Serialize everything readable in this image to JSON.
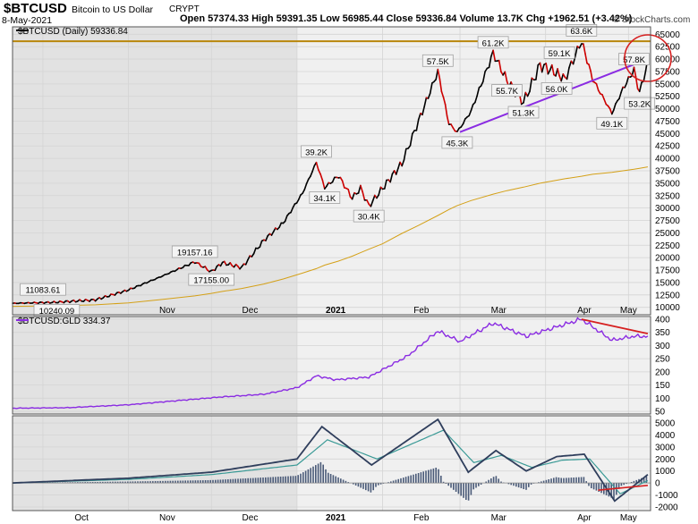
{
  "header": {
    "symbol": "$BTCUSD",
    "name": "Bitcoin to US Dollar",
    "exchange": "CRYPT",
    "date": "8-May-2021",
    "ohlc_text": "Open 57374.33   High 59391.35   Low 56985.44   Close 59336.84   Volume 13.7K   Chg +1962.51 (+3.42%)",
    "watermark": "© StockCharts.com"
  },
  "colors": {
    "up": "#000000",
    "down": "#cc0000",
    "ma": "#d4a017",
    "support": "#8a2be2",
    "resistance": "#b8860b",
    "ratio": "#8a2be2",
    "macd": "#2f3e5c",
    "signal": "#3a9a96",
    "annotation": "#d62020",
    "shade": "#e2e2e2",
    "panel": "#f0f0f0"
  },
  "chart_data": [
    {
      "type": "line",
      "title": "$BTCUSD (Daily) 59336.84",
      "x": [
        "2020-09-20",
        "2020-10-05",
        "2020-10-20",
        "2020-11-01",
        "2020-11-12",
        "2020-11-25",
        "2020-12-01",
        "2020-12-05",
        "2020-12-12",
        "2020-12-20",
        "2020-12-27",
        "2021-01-03",
        "2021-01-08",
        "2021-01-11",
        "2021-01-16",
        "2021-01-21",
        "2021-01-24",
        "2021-01-27",
        "2021-02-01",
        "2021-02-08",
        "2021-02-14",
        "2021-02-21",
        "2021-02-25",
        "2021-02-28",
        "2021-03-05",
        "2021-03-13",
        "2021-03-18",
        "2021-03-24",
        "2021-03-30",
        "2021-04-04",
        "2021-04-08",
        "2021-04-14",
        "2021-04-18",
        "2021-04-25",
        "2021-04-29",
        "2021-05-03",
        "2021-05-05",
        "2021-05-08"
      ],
      "y": [
        10800,
        11000,
        11500,
        13500,
        16000,
        19157,
        17155,
        19000,
        18000,
        23500,
        27000,
        33000,
        39200,
        34100,
        36500,
        32000,
        34000,
        30400,
        34000,
        39000,
        47500,
        57500,
        47000,
        45300,
        49500,
        61200,
        55700,
        51300,
        58800,
        57500,
        56000,
        63600,
        56000,
        49100,
        54000,
        57800,
        53200,
        59336
      ],
      "annotations": [
        "11083.61",
        "10240.09",
        "19157.16",
        "17155.00",
        "39.2K",
        "34.1K",
        "30.4K",
        "57.5K",
        "45.3K",
        "61.2K",
        "55.7K",
        "51.3K",
        "59.1K",
        "56.0K",
        "63.6K",
        "49.1K",
        "57.8K",
        "53.2K"
      ],
      "ma_y": [
        10200,
        10300,
        10500,
        10900,
        11500,
        12300,
        12800,
        13200,
        13800,
        14700,
        15700,
        16900,
        17800,
        18500,
        19300,
        20300,
        21000,
        21700,
        22800,
        24900,
        26500,
        28500,
        29700,
        30500,
        31500,
        32800,
        33500,
        34200,
        35000,
        35500,
        35900,
        36400,
        36800,
        37200,
        37500,
        37800,
        38000,
        38300
      ],
      "resistance": 63600,
      "support_from": [
        "2021-03-01",
        45300
      ],
      "support_to": [
        "2021-05-08",
        60000
      ],
      "ylim": [
        8500,
        66500
      ],
      "yticks": [
        "65000",
        "62500",
        "60000",
        "57500",
        "55000",
        "52500",
        "50000",
        "47500",
        "45000",
        "42500",
        "40000",
        "37500",
        "35000",
        "32500",
        "30000",
        "27500",
        "25000",
        "22500",
        "20000",
        "17500",
        "15000",
        "12500",
        "10000"
      ],
      "xticks": [
        "Nov",
        "Dec",
        "2021",
        "Feb",
        "Mar",
        "Apr",
        "May"
      ]
    },
    {
      "type": "line",
      "title": "$BTCUSD:GLD 334.37",
      "x": [
        "2020-09-20",
        "2020-10-10",
        "2020-11-01",
        "2020-11-20",
        "2020-12-05",
        "2020-12-20",
        "2021-01-01",
        "2021-01-08",
        "2021-01-15",
        "2021-01-27",
        "2021-02-10",
        "2021-02-21",
        "2021-03-01",
        "2021-03-13",
        "2021-03-25",
        "2021-04-14",
        "2021-04-25",
        "2021-05-03",
        "2021-05-08"
      ],
      "y": [
        62,
        64,
        75,
        92,
        105,
        115,
        140,
        185,
        170,
        180,
        260,
        355,
        315,
        385,
        335,
        400,
        320,
        335,
        334.37
      ],
      "trend_from": [
        "2021-04-14",
        400
      ],
      "trend_to": [
        "2021-05-08",
        345
      ],
      "ylim": [
        40,
        410
      ],
      "yticks": [
        "400",
        "350",
        "300",
        "250",
        "200",
        "150",
        "100",
        "50"
      ]
    },
    {
      "type": "line",
      "series": [
        {
          "x": [
            "2020-09-20",
            "2020-11-01",
            "2020-12-01",
            "2021-01-01",
            "2021-01-10",
            "2021-01-28",
            "2021-02-21",
            "2021-03-04",
            "2021-03-14",
            "2021-03-25",
            "2021-04-05",
            "2021-04-15",
            "2021-04-26",
            "2021-05-08"
          ],
          "y": [
            0,
            400,
            900,
            2000,
            4700,
            1500,
            5300,
            900,
            2700,
            1000,
            2200,
            2400,
            -1500,
            700
          ]
        },
        {
          "x": [
            "2020-09-20",
            "2020-11-01",
            "2020-12-01",
            "2021-01-01",
            "2021-01-12",
            "2021-01-30",
            "2021-02-23",
            "2021-03-06",
            "2021-03-16",
            "2021-03-27",
            "2021-04-07",
            "2021-04-17",
            "2021-04-28",
            "2021-05-08"
          ],
          "y": [
            0,
            300,
            700,
            1500,
            3600,
            2000,
            4400,
            1700,
            2300,
            1300,
            1900,
            2000,
            -900,
            200
          ]
        }
      ],
      "ylim": [
        -2300,
        5600
      ],
      "yticks": [
        "5000",
        "4000",
        "3000",
        "2000",
        "1000",
        "0",
        "-1000",
        "-2000"
      ],
      "xticks": [
        "Oct",
        "Nov",
        "Dec",
        "2021",
        "Feb",
        "Mar",
        "Apr",
        "May"
      ]
    }
  ]
}
